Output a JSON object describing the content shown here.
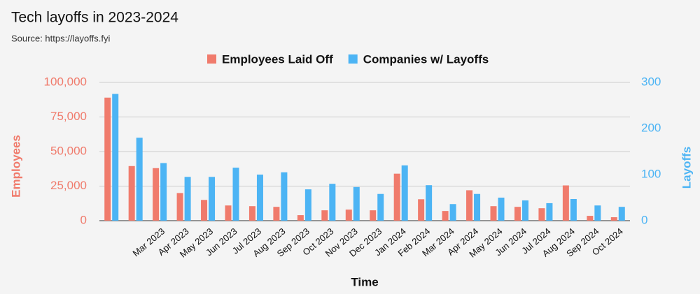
{
  "chart_data": {
    "type": "bar",
    "title": "Tech layoffs in 2023-2024",
    "subtitle": "Source: https://layoffs.fyi",
    "x_label": "Time",
    "y_label": "Employees",
    "y2_label": "Layoffs",
    "categories": [
      null,
      null,
      "Mar 2023",
      "Apr 2023",
      "May 2023",
      "Jun 2023",
      "Jul 2023",
      "Aug 2023",
      "Sep 2023",
      "Oct 2023",
      "Nov 2023",
      "Dec 2023",
      "Jan 2024",
      "Feb 2024",
      "Mar 2024",
      "Apr 2024",
      "May 2024",
      "Jun 2024",
      "Jul 2024",
      "Aug 2024",
      "Sep 2024",
      "Oct 2024"
    ],
    "series": [
      {
        "name": "Employees Laid Off",
        "color": "#f07b6c",
        "values": [
          89000,
          39500,
          38000,
          20000,
          15000,
          11000,
          10500,
          10000,
          4000,
          7500,
          8000,
          7500,
          34000,
          15500,
          7000,
          22000,
          10500,
          10000,
          9000,
          25500,
          3500,
          2500
        ]
      },
      {
        "name": "Companies w/ Layoffs",
        "color": "#4cb4f4",
        "axis": "y2",
        "values": [
          275,
          180,
          125,
          95,
          95,
          115,
          100,
          105,
          68,
          80,
          73,
          58,
          120,
          77,
          36,
          58,
          50,
          44,
          38,
          47,
          33,
          30
        ]
      }
    ],
    "ylim": [
      0,
      100000
    ],
    "yticks": [
      0,
      {
        "value": 25000,
        "label": "25,000"
      },
      {
        "value": 50000,
        "label": "50,000"
      },
      {
        "value": 75000,
        "label": "75,000"
      },
      {
        "value": 100000,
        "label": "100,000"
      }
    ],
    "y2lim": [
      0,
      300
    ],
    "y2ticks": [
      0,
      100,
      200,
      300
    ],
    "grid": true,
    "legend": "top"
  }
}
